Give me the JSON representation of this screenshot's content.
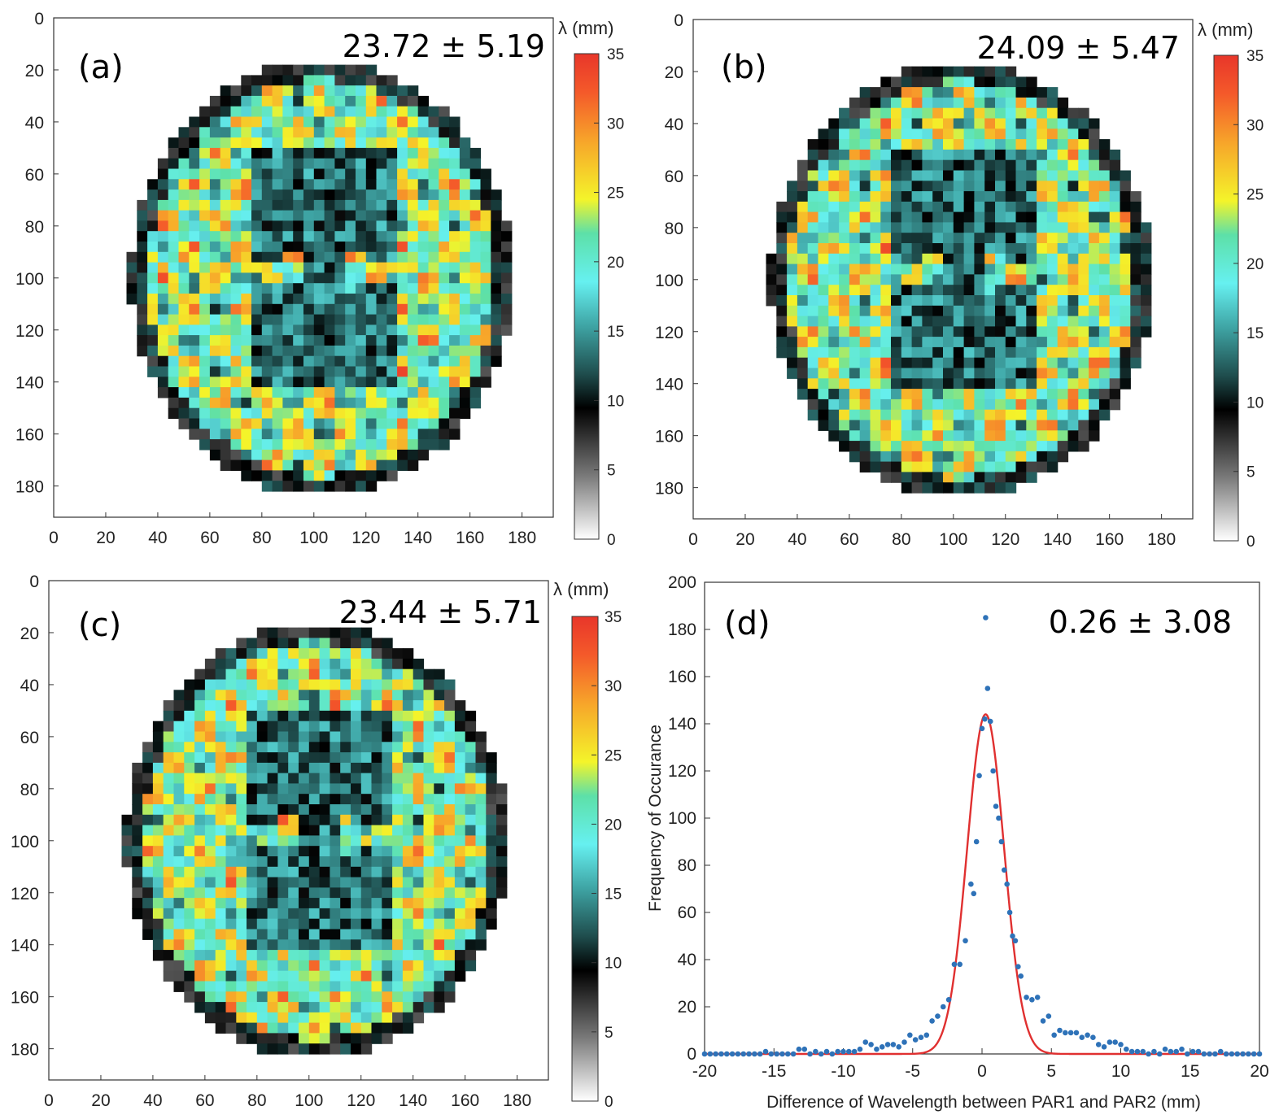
{
  "colormap": {
    "stops": [
      [
        0,
        "#ffffff"
      ],
      [
        0.13,
        "#7a7a7a"
      ],
      [
        0.27,
        "#000000"
      ],
      [
        0.34,
        "#1f4d4d"
      ],
      [
        0.44,
        "#3fa5a5"
      ],
      [
        0.53,
        "#66f0f0"
      ],
      [
        0.63,
        "#5de0a8"
      ],
      [
        0.7,
        "#f4f42a"
      ],
      [
        0.82,
        "#f7a52a"
      ],
      [
        0.92,
        "#f45a2a"
      ],
      [
        1,
        "#e8362a"
      ]
    ]
  },
  "maps": [
    {
      "label": "(a)",
      "stat": "23.72 ± 5.19",
      "colorbar_title": "λ (mm)",
      "colorbar_ticks": [
        "0",
        "5",
        "10",
        "15",
        "20",
        "25",
        "30",
        "35"
      ],
      "colorbar_range": [
        0,
        35
      ],
      "x_ticks": [
        "0",
        "20",
        "40",
        "60",
        "80",
        "100",
        "120",
        "140",
        "160",
        "180"
      ],
      "y_ticks": [
        "0",
        "20",
        "40",
        "60",
        "80",
        "100",
        "120",
        "140",
        "160",
        "180"
      ],
      "x_range": [
        0,
        192
      ],
      "y_range": [
        0,
        192
      ],
      "seed": 11
    },
    {
      "label": "(b)",
      "stat": "24.09 ± 5.47",
      "colorbar_title": "λ (mm)",
      "colorbar_ticks": [
        "0",
        "5",
        "10",
        "15",
        "20",
        "25",
        "30",
        "35"
      ],
      "colorbar_range": [
        0,
        35
      ],
      "x_ticks": [
        "0",
        "20",
        "40",
        "60",
        "80",
        "100",
        "120",
        "140",
        "160",
        "180"
      ],
      "y_ticks": [
        "0",
        "20",
        "40",
        "60",
        "80",
        "100",
        "120",
        "140",
        "160",
        "180"
      ],
      "x_range": [
        0,
        192
      ],
      "y_range": [
        0,
        192
      ],
      "seed": 23
    },
    {
      "label": "(c)",
      "stat": "23.44 ± 5.71",
      "colorbar_title": "λ (mm)",
      "colorbar_ticks": [
        "0",
        "5",
        "10",
        "15",
        "20",
        "25",
        "30",
        "35"
      ],
      "colorbar_range": [
        0,
        35
      ],
      "x_ticks": [
        "0",
        "20",
        "40",
        "60",
        "80",
        "100",
        "120",
        "140",
        "160",
        "180"
      ],
      "y_ticks": [
        "0",
        "20",
        "40",
        "60",
        "80",
        "100",
        "120",
        "140",
        "160",
        "180"
      ],
      "x_range": [
        0,
        192
      ],
      "y_range": [
        0,
        192
      ],
      "seed": 37
    }
  ],
  "chart_data": {
    "type": "scatter",
    "label": "(d)",
    "stat": "0.26 ± 3.08",
    "xlabel": "Difference of Wavelength between PAR1 and PAR2 (mm)",
    "ylabel": "Frequency of Occurance",
    "xlim": [
      -20,
      20
    ],
    "ylim": [
      0,
      200
    ],
    "x_ticks": [
      "-20",
      "-15",
      "-10",
      "-5",
      "0",
      "5",
      "10",
      "15",
      "20"
    ],
    "y_ticks": [
      "0",
      "20",
      "40",
      "60",
      "80",
      "100",
      "120",
      "140",
      "160",
      "180",
      "200"
    ],
    "fit": {
      "type": "gaussian",
      "amplitude": 144,
      "mean": 0.26,
      "sigma": 1.33,
      "color": "#e03030"
    },
    "point_color": "#2e72b8",
    "points": [
      [
        -20,
        0
      ],
      [
        -19.6,
        0
      ],
      [
        -19.2,
        0
      ],
      [
        -18.8,
        0
      ],
      [
        -18.4,
        0
      ],
      [
        -18,
        0
      ],
      [
        -17.6,
        0
      ],
      [
        -17.2,
        0
      ],
      [
        -16.8,
        0
      ],
      [
        -16.4,
        0
      ],
      [
        -16,
        0
      ],
      [
        -15.6,
        1
      ],
      [
        -15.2,
        0
      ],
      [
        -14.8,
        0
      ],
      [
        -14.4,
        0
      ],
      [
        -14,
        0
      ],
      [
        -13.6,
        0
      ],
      [
        -13.2,
        2
      ],
      [
        -12.8,
        2
      ],
      [
        -12.4,
        0
      ],
      [
        -12,
        1
      ],
      [
        -11.6,
        0
      ],
      [
        -11.2,
        1
      ],
      [
        -10.8,
        0
      ],
      [
        -10.4,
        1
      ],
      [
        -10,
        1
      ],
      [
        -9.6,
        1
      ],
      [
        -9.2,
        1
      ],
      [
        -8.8,
        2
      ],
      [
        -8.4,
        5
      ],
      [
        -8,
        4
      ],
      [
        -7.6,
        2
      ],
      [
        -7.2,
        3
      ],
      [
        -6.8,
        4
      ],
      [
        -6.4,
        4
      ],
      [
        -6,
        3
      ],
      [
        -5.6,
        5
      ],
      [
        -5.2,
        8
      ],
      [
        -4.8,
        6
      ],
      [
        -4.4,
        7
      ],
      [
        -4,
        8
      ],
      [
        -3.6,
        14
      ],
      [
        -3.2,
        16
      ],
      [
        -2.8,
        20
      ],
      [
        -2.4,
        23
      ],
      [
        -2,
        38
      ],
      [
        -1.6,
        38
      ],
      [
        -1.2,
        48
      ],
      [
        -0.8,
        72
      ],
      [
        -0.6,
        68
      ],
      [
        -0.4,
        90
      ],
      [
        -0.2,
        118
      ],
      [
        0,
        138
      ],
      [
        0.2,
        142
      ],
      [
        0.26,
        185
      ],
      [
        0.4,
        155
      ],
      [
        0.6,
        141
      ],
      [
        0.8,
        120
      ],
      [
        1,
        105
      ],
      [
        1.2,
        100
      ],
      [
        1.4,
        90
      ],
      [
        1.6,
        78
      ],
      [
        1.8,
        72
      ],
      [
        2,
        60
      ],
      [
        2.2,
        50
      ],
      [
        2.4,
        48
      ],
      [
        2.6,
        37
      ],
      [
        2.8,
        33
      ],
      [
        3.2,
        24
      ],
      [
        3.6,
        23
      ],
      [
        4,
        24
      ],
      [
        4.4,
        14
      ],
      [
        4.8,
        16
      ],
      [
        5.2,
        8
      ],
      [
        5.6,
        10
      ],
      [
        6,
        9
      ],
      [
        6.4,
        9
      ],
      [
        6.8,
        9
      ],
      [
        7.2,
        7
      ],
      [
        7.6,
        8
      ],
      [
        8,
        7
      ],
      [
        8.4,
        4
      ],
      [
        8.8,
        3
      ],
      [
        9.2,
        5
      ],
      [
        9.6,
        5
      ],
      [
        10,
        4
      ],
      [
        10.4,
        2
      ],
      [
        10.8,
        1
      ],
      [
        11.2,
        1
      ],
      [
        11.6,
        1
      ],
      [
        12,
        0
      ],
      [
        12.4,
        1
      ],
      [
        12.8,
        0
      ],
      [
        13.2,
        2
      ],
      [
        13.6,
        1
      ],
      [
        14,
        1
      ],
      [
        14.4,
        2
      ],
      [
        14.8,
        0
      ],
      [
        15.2,
        1
      ],
      [
        15.6,
        1
      ],
      [
        16,
        0
      ],
      [
        16.4,
        0
      ],
      [
        16.8,
        0
      ],
      [
        17.2,
        1
      ],
      [
        17.6,
        0
      ],
      [
        18,
        0
      ],
      [
        18.4,
        0
      ],
      [
        18.8,
        0
      ],
      [
        19.2,
        0
      ],
      [
        19.6,
        0
      ],
      [
        20,
        0
      ]
    ]
  }
}
